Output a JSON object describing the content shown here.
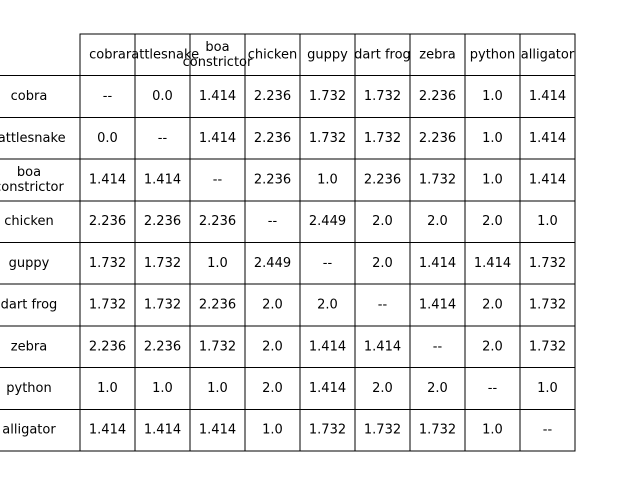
{
  "chart_data": {
    "type": "table",
    "title": "",
    "colors": {
      "background": "#ffffff",
      "grid_line": "#000000",
      "text": "#000000"
    },
    "columns": [
      [
        "cobra"
      ],
      [
        "rattlesnake"
      ],
      [
        "boa",
        "constrictor"
      ],
      [
        "chicken"
      ],
      [
        "guppy"
      ],
      [
        "dart frog"
      ],
      [
        "zebra"
      ],
      [
        "python"
      ],
      [
        "alligator"
      ]
    ],
    "rows": [
      {
        "label": [
          "cobra"
        ],
        "cells": [
          "--",
          "0.0",
          "1.414",
          "2.236",
          "1.732",
          "1.732",
          "2.236",
          "1.0",
          "1.414"
        ]
      },
      {
        "label": [
          "rattlesnake"
        ],
        "cells": [
          "0.0",
          "--",
          "1.414",
          "2.236",
          "1.732",
          "1.732",
          "2.236",
          "1.0",
          "1.414"
        ]
      },
      {
        "label": [
          "boa",
          "constrictor"
        ],
        "cells": [
          "1.414",
          "1.414",
          "--",
          "2.236",
          "1.0",
          "2.236",
          "1.732",
          "1.0",
          "1.414"
        ]
      },
      {
        "label": [
          "chicken"
        ],
        "cells": [
          "2.236",
          "2.236",
          "2.236",
          "--",
          "2.449",
          "2.0",
          "2.0",
          "2.0",
          "1.0"
        ]
      },
      {
        "label": [
          "guppy"
        ],
        "cells": [
          "1.732",
          "1.732",
          "1.0",
          "2.449",
          "--",
          "2.0",
          "1.414",
          "1.414",
          "1.732"
        ]
      },
      {
        "label": [
          "dart frog"
        ],
        "cells": [
          "1.732",
          "1.732",
          "2.236",
          "2.0",
          "2.0",
          "--",
          "1.414",
          "2.0",
          "1.732"
        ]
      },
      {
        "label": [
          "zebra"
        ],
        "cells": [
          "2.236",
          "2.236",
          "1.732",
          "2.0",
          "1.414",
          "1.414",
          "--",
          "2.0",
          "1.732"
        ]
      },
      {
        "label": [
          "python"
        ],
        "cells": [
          "1.0",
          "1.0",
          "1.0",
          "2.0",
          "1.414",
          "2.0",
          "2.0",
          "--",
          "1.0"
        ]
      },
      {
        "label": [
          "alligator"
        ],
        "cells": [
          "1.414",
          "1.414",
          "1.414",
          "1.0",
          "1.732",
          "1.732",
          "1.732",
          "1.0",
          "--"
        ]
      }
    ]
  }
}
